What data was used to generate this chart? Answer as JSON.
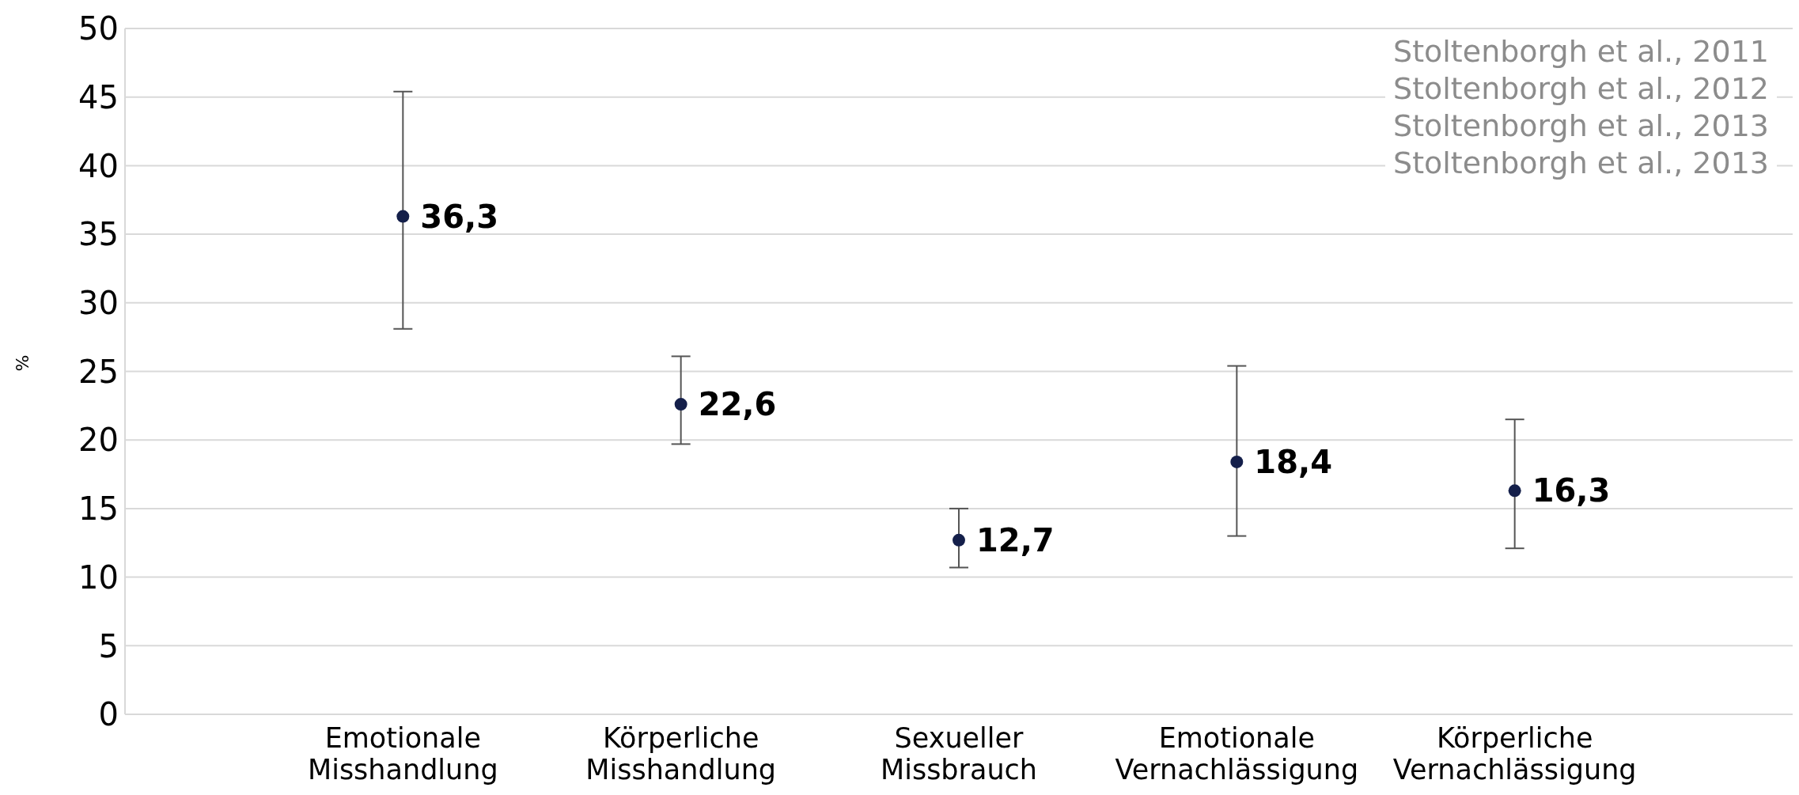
{
  "chart_data": {
    "type": "scatter",
    "ylabel": "%",
    "categories": [
      "Emotionale Misshandlung",
      "Körperliche Misshandlung",
      "Sexueller Missbrauch",
      "Emotionale Vernachlässigung",
      "Körperliche Vernachlässigung"
    ],
    "values": [
      36.3,
      22.6,
      12.7,
      18.4,
      16.3
    ],
    "value_labels": [
      "36,3",
      "22,6",
      "12,7",
      "18,4",
      "16,3"
    ],
    "errors": [
      [
        28.1,
        45.4
      ],
      [
        19.7,
        26.1
      ],
      [
        10.7,
        15.0
      ],
      [
        13.0,
        25.4
      ],
      [
        12.1,
        21.5
      ]
    ],
    "color": "#141f4a",
    "marker": "circle",
    "grid": "y",
    "legend": false,
    "ylim": [
      0,
      50
    ],
    "yticks": [
      0,
      5,
      10,
      15,
      20,
      25,
      30,
      35,
      40,
      45,
      50
    ],
    "annotations": [
      "Stoltenborgh et al., 2011",
      "Stoltenborgh et al., 2012",
      "Stoltenborgh et al., 2013",
      "Stoltenborgh et al., 2013"
    ]
  }
}
